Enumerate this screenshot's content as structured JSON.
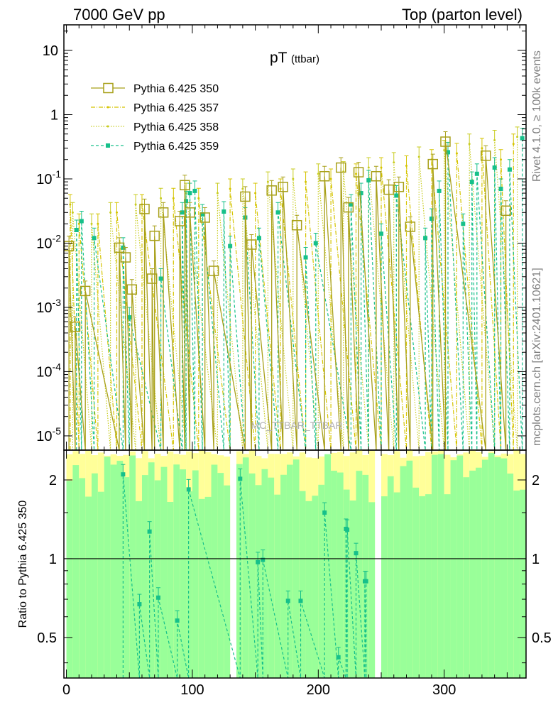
{
  "header": {
    "left": "7000 GeV pp",
    "right": "Top (parton level)"
  },
  "side_texts": {
    "rivet": "Rivet 4.1.0, ≥ 100k events",
    "mcplots": "mcplots.cern.ch [arXiv:2401.10621]"
  },
  "watermark": "MC_TTBAR_TTBAR",
  "colors": {
    "p350": "#a8a019",
    "p357": "#d5c400",
    "p358": "#c8cc20",
    "p359": "#16c08a",
    "band_yellow": "#ffff99",
    "band_green": "#99ff99"
  },
  "chart_data": [
    {
      "type": "scatter",
      "title": "pT",
      "title_sub": "(ttbar)",
      "xlabel": "",
      "ylabel": "",
      "yscale": "log",
      "xlim": [
        -2,
        365
      ],
      "ylim": [
        6e-06,
        25
      ],
      "x_ticks": [
        0,
        100,
        200,
        300
      ],
      "y_ticks": [
        {
          "base": "10",
          "exp": "-5"
        },
        {
          "base": "10",
          "exp": "-4"
        },
        {
          "base": "10",
          "exp": "-3"
        },
        {
          "base": "10",
          "exp": "-2"
        },
        {
          "base": "10",
          "exp": "-1"
        },
        {
          "base": "1",
          "exp": ""
        },
        {
          "base": "10",
          "exp": ""
        }
      ],
      "legend_position": "top-left",
      "legend": [
        "Pythia 6.425 350",
        "Pythia 6.425 357",
        "Pythia 6.425 358",
        "Pythia 6.425 359"
      ],
      "series": [
        {
          "name": "Pythia 6.425 350",
          "style": "solid-square",
          "points": [
            [
              2,
              0.009
            ],
            [
              7,
              0.0005
            ],
            [
              15,
              0.0018
            ],
            [
              42,
              0.0085
            ],
            [
              47,
              0.006
            ],
            [
              52,
              0.0019
            ],
            [
              62,
              0.034
            ],
            [
              68,
              0.0028
            ],
            [
              70,
              0.013
            ],
            [
              77,
              0.03
            ],
            [
              90,
              0.022
            ],
            [
              94,
              0.08
            ],
            [
              98,
              0.03
            ],
            [
              110,
              0.025
            ],
            [
              117,
              0.0037
            ],
            [
              142,
              0.053
            ],
            [
              147,
              0.0095
            ],
            [
              163,
              0.066
            ],
            [
              172,
              0.075
            ],
            [
              183,
              0.019
            ],
            [
              205,
              0.11
            ],
            [
              218,
              0.15
            ],
            [
              224,
              0.036
            ],
            [
              232,
              0.127
            ],
            [
              246,
              0.11
            ],
            [
              256,
              0.068
            ],
            [
              264,
              0.075
            ],
            [
              273,
              0.018
            ],
            [
              291,
              0.17
            ],
            [
              301,
              0.38
            ],
            [
              333,
              0.23
            ],
            [
              349,
              0.032
            ]
          ]
        },
        {
          "name": "Pythia 6.425 357",
          "style": "dashdot",
          "points": [
            [
              3,
              0.04
            ],
            [
              10,
              0.02
            ],
            [
              25,
              0.02
            ],
            [
              40,
              0.03
            ],
            [
              60,
              0.04
            ],
            [
              85,
              0.05
            ],
            [
              105,
              0.05
            ],
            [
              130,
              0.07
            ],
            [
              150,
              0.06
            ],
            [
              170,
              0.07
            ],
            [
              190,
              0.09
            ],
            [
              210,
              0.1
            ],
            [
              230,
              0.12
            ],
            [
              250,
              0.15
            ],
            [
              270,
              0.16
            ],
            [
              290,
              0.2
            ],
            [
              310,
              0.25
            ],
            [
              330,
              0.3
            ],
            [
              345,
              0.2
            ],
            [
              355,
              0.35
            ]
          ]
        },
        {
          "name": "Pythia 6.425 358",
          "style": "dotted",
          "points": [
            [
              5,
              0.03
            ],
            [
              20,
              0.02
            ],
            [
              35,
              0.03
            ],
            [
              55,
              0.04
            ],
            [
              75,
              0.05
            ],
            [
              95,
              0.06
            ],
            [
              120,
              0.06
            ],
            [
              140,
              0.07
            ],
            [
              160,
              0.09
            ],
            [
              180,
              0.1
            ],
            [
              200,
              0.12
            ],
            [
              220,
              0.13
            ],
            [
              240,
              0.15
            ],
            [
              260,
              0.18
            ],
            [
              280,
              0.22
            ],
            [
              300,
              0.28
            ],
            [
              320,
              0.35
            ],
            [
              340,
              0.4
            ],
            [
              358,
              0.45
            ]
          ]
        },
        {
          "name": "Pythia 6.425 359",
          "style": "dashed-marker",
          "points": [
            [
              8,
              0.016
            ],
            [
              12,
              0.022
            ],
            [
              22,
              0.012
            ],
            [
              45,
              0.0085
            ],
            [
              50,
              0.0007
            ],
            [
              75,
              0.0028
            ],
            [
              92,
              0.03
            ],
            [
              95,
              0.045
            ],
            [
              98,
              0.06
            ],
            [
              102,
              0.065
            ],
            [
              108,
              0.028
            ],
            [
              125,
              0.031
            ],
            [
              130,
              0.009
            ],
            [
              142,
              0.025
            ],
            [
              153,
              0.012
            ],
            [
              168,
              0.03
            ],
            [
              190,
              0.006
            ],
            [
              198,
              0.01
            ],
            [
              226,
              0.04
            ],
            [
              234,
              0.06
            ],
            [
              240,
              0.095
            ],
            [
              250,
              0.014
            ],
            [
              262,
              0.055
            ],
            [
              285,
              0.012
            ],
            [
              290,
              0.024
            ],
            [
              296,
              0.065
            ],
            [
              303,
              0.26
            ],
            [
              315,
              0.02
            ],
            [
              322,
              0.09
            ],
            [
              326,
              0.12
            ],
            [
              340,
              0.15
            ],
            [
              345,
              0.07
            ],
            [
              352,
              0.14
            ],
            [
              362,
              0.43
            ]
          ]
        }
      ]
    },
    {
      "type": "scatter",
      "title": "",
      "xlabel": "",
      "ylabel": "Ratio to Pythia 6.425 350",
      "yscale": "log",
      "xlim": [
        -2,
        365
      ],
      "ylim": [
        0.35,
        2.6
      ],
      "x_ticks": [
        0,
        100,
        200,
        300
      ],
      "y_ticks": [
        0.5,
        1,
        2
      ],
      "reference_line": 1,
      "series": [
        {
          "name": "Pythia 6.425 359",
          "style": "dashed-marker",
          "points": [
            [
              45,
              2.1
            ],
            [
              58,
              0.67
            ],
            [
              66,
              1.27
            ],
            [
              73,
              0.71
            ],
            [
              88,
              0.58
            ],
            [
              97,
              1.84
            ],
            [
              138,
              2.02
            ],
            [
              152,
              0.97
            ],
            [
              156,
              0.99
            ],
            [
              176,
              0.69
            ],
            [
              186,
              0.69
            ],
            [
              205,
              1.5
            ],
            [
              216,
              0.42
            ],
            [
              222,
              1.3
            ],
            [
              223,
              1.29
            ],
            [
              237,
              0.82
            ],
            [
              238,
              0.82
            ],
            [
              230,
              1.05
            ]
          ]
        }
      ]
    }
  ]
}
